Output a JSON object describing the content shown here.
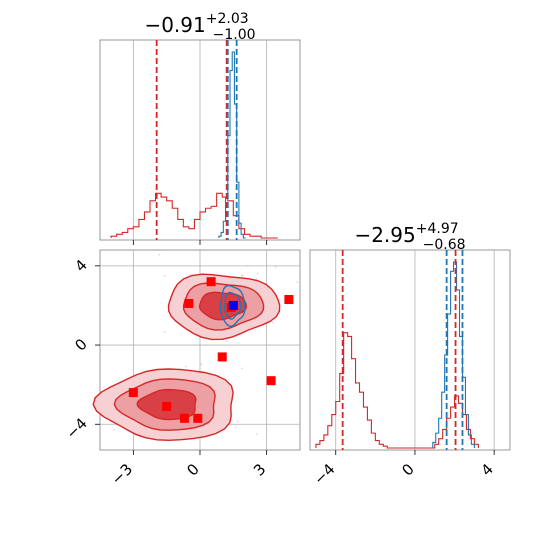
{
  "chart_data": [
    {
      "type": "histogram",
      "panel": "marginal-x",
      "title": {
        "main": "−0.91",
        "sup": "+2.03",
        "sub": "−1.00"
      },
      "xlim": [
        -4.5,
        4.5
      ],
      "xticks": [
        -3,
        0,
        3
      ],
      "grid": true,
      "colors": {
        "red": "#d62728",
        "blue": "#1f77b4"
      },
      "vlines": [
        {
          "series": "red",
          "x": -1.95,
          "style": "dashed"
        },
        {
          "series": "red",
          "x": 1.2,
          "style": "dashed"
        },
        {
          "series": "blue",
          "x": 1.25,
          "style": "dashed"
        },
        {
          "series": "blue",
          "x": 1.65,
          "style": "dashed"
        }
      ],
      "series": [
        {
          "color": "red",
          "bins": [
            -4.0,
            -3.75,
            -3.5,
            -3.25,
            -3.0,
            -2.75,
            -2.5,
            -2.25,
            -2.0,
            -1.75,
            -1.5,
            -1.25,
            -1.0,
            -0.75,
            -0.5,
            -0.25,
            0.0,
            0.25,
            0.5,
            0.75,
            1.0,
            1.25,
            1.5,
            1.75,
            2.0,
            2.25,
            2.5,
            2.75,
            3.0,
            3.25,
            3.5
          ],
          "counts": [
            0.01,
            0.02,
            0.03,
            0.05,
            0.06,
            0.1,
            0.14,
            0.2,
            0.24,
            0.22,
            0.2,
            0.16,
            0.1,
            0.06,
            0.05,
            0.1,
            0.14,
            0.16,
            0.17,
            0.24,
            0.22,
            0.2,
            0.12,
            0.05,
            0.02,
            0.01,
            0.01,
            0,
            0,
            0
          ]
        },
        {
          "color": "blue",
          "bins": [
            0.85,
            0.95,
            1.05,
            1.15,
            1.25,
            1.35,
            1.45,
            1.55,
            1.65,
            1.75,
            1.85,
            1.95,
            2.05
          ],
          "counts": [
            0.01,
            0.03,
            0.09,
            0.22,
            0.55,
            0.9,
            1.0,
            0.72,
            0.3,
            0.08,
            0.02,
            0
          ]
        }
      ]
    },
    {
      "type": "scatter",
      "panel": "joint",
      "xlim": [
        -4.5,
        4.5
      ],
      "ylim": [
        -5.3,
        4.8
      ],
      "xticks": [
        -3,
        0,
        3
      ],
      "yticks": [
        -4,
        0,
        4
      ],
      "grid": true,
      "red_points": [
        [
          0.5,
          3.2
        ],
        [
          -0.5,
          2.1
        ],
        [
          1.4,
          1.9
        ],
        [
          4.0,
          2.3
        ],
        [
          1.0,
          -0.6
        ],
        [
          3.2,
          -1.8
        ],
        [
          -3.0,
          -2.4
        ],
        [
          -1.5,
          -3.1
        ],
        [
          -0.7,
          -3.7
        ],
        [
          -0.1,
          -3.7
        ]
      ],
      "blue_points": [
        [
          1.5,
          2.0
        ]
      ],
      "contours": {
        "red": [
          {
            "cx": 1.0,
            "cy": 2.0,
            "rx": 2.5,
            "ry": 1.6
          },
          {
            "cx": -1.4,
            "cy": -3.0,
            "rx": 3.1,
            "ry": 1.8
          }
        ],
        "blue": [
          {
            "cx": 1.45,
            "cy": 2.0,
            "rx": 0.55,
            "ry": 1.0
          }
        ]
      }
    },
    {
      "type": "histogram",
      "panel": "marginal-y",
      "title": {
        "main": "−2.95",
        "sup": "+4.97",
        "sub": "−0.68"
      },
      "xlim": [
        -5.3,
        4.8
      ],
      "xticks": [
        -4,
        0,
        4
      ],
      "grid": true,
      "colors": {
        "red": "#d62728",
        "blue": "#1f77b4"
      },
      "vlines": [
        {
          "series": "red",
          "x": -3.65,
          "style": "dashed"
        },
        {
          "series": "red",
          "x": 2.05,
          "style": "dashed"
        },
        {
          "series": "blue",
          "x": 1.6,
          "style": "dashed"
        },
        {
          "series": "blue",
          "x": 2.4,
          "style": "dashed"
        }
      ],
      "series": [
        {
          "color": "red",
          "bins": [
            -5.0,
            -4.8,
            -4.6,
            -4.4,
            -4.2,
            -4.0,
            -3.8,
            -3.6,
            -3.4,
            -3.2,
            -3.0,
            -2.8,
            -2.6,
            -2.4,
            -2.2,
            -2.0,
            -1.8,
            -1.6,
            -1.4,
            1.0,
            1.2,
            1.4,
            1.6,
            1.8,
            2.0,
            2.2,
            2.4,
            2.6,
            2.8,
            3.0,
            3.2
          ],
          "counts": [
            0.02,
            0.04,
            0.07,
            0.12,
            0.18,
            0.25,
            0.4,
            0.62,
            0.6,
            0.48,
            0.35,
            0.3,
            0.22,
            0.15,
            0.08,
            0.04,
            0.02,
            0.01,
            0,
            0.02,
            0.05,
            0.1,
            0.16,
            0.22,
            0.28,
            0.24,
            0.18,
            0.1,
            0.05,
            0.02
          ]
        },
        {
          "color": "blue",
          "bins": [
            0.9,
            1.05,
            1.2,
            1.35,
            1.5,
            1.65,
            1.8,
            1.95,
            2.1,
            2.25,
            2.4,
            2.55,
            2.7,
            2.85,
            3.0
          ],
          "counts": [
            0.03,
            0.08,
            0.16,
            0.3,
            0.5,
            0.72,
            0.95,
            1.0,
            0.85,
            0.6,
            0.38,
            0.18,
            0.07,
            0.02
          ]
        }
      ]
    }
  ]
}
